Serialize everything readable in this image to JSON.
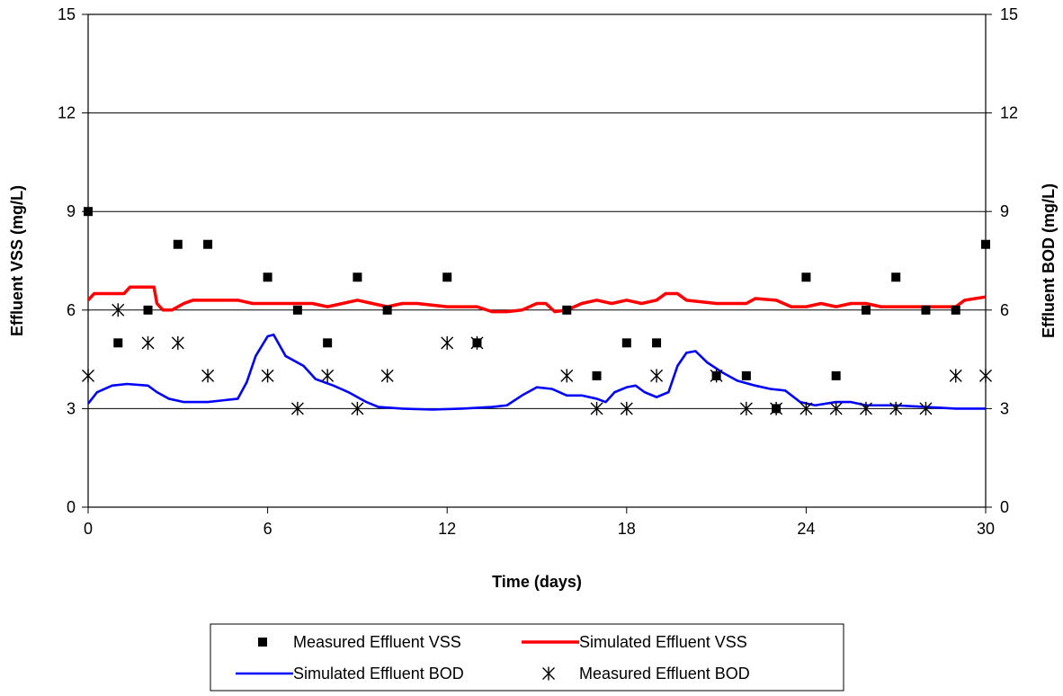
{
  "chart_data": {
    "type": "line",
    "title": "",
    "xlabel": "Time (days)",
    "ylabel": "Effluent VSS (mg/L)",
    "y2label": "Effluent BOD (mg/L)",
    "xlim": [
      0,
      30
    ],
    "ylim": [
      0,
      15
    ],
    "y2lim": [
      0,
      15
    ],
    "xticks": [
      "0",
      "6",
      "12",
      "18",
      "24",
      "30"
    ],
    "yticks": [
      "0",
      "3",
      "6",
      "9",
      "12",
      "15"
    ],
    "y2ticks": [
      "0",
      "3",
      "6",
      "9",
      "12",
      "15"
    ],
    "grid": "horizontal",
    "legend_position": "bottom",
    "series": [
      {
        "name": "Measured Effluent VSS",
        "kind": "marker-square",
        "color": "#000000",
        "x": [
          0,
          1,
          2,
          3,
          4,
          6,
          7,
          8,
          9,
          10,
          12,
          13,
          16,
          17,
          18,
          19,
          21,
          22,
          23,
          24,
          25,
          26,
          27,
          28,
          29,
          30
        ],
        "y": [
          9,
          5,
          6,
          8,
          8,
          7,
          6,
          5,
          7,
          6,
          7,
          5,
          6,
          4,
          5,
          5,
          4,
          4,
          3,
          7,
          4,
          6,
          7,
          6,
          6,
          8
        ]
      },
      {
        "name": "Simulated Effluent VSS",
        "kind": "line",
        "color": "#ff0000",
        "x": [
          0,
          0.2,
          1.2,
          1.4,
          2.2,
          2.3,
          2.5,
          2.8,
          3.2,
          3.5,
          4,
          5,
          5.5,
          6,
          7,
          7.5,
          8,
          8.5,
          9,
          9.5,
          10,
          10.5,
          11,
          12,
          12.5,
          13,
          13.5,
          14,
          14.5,
          15,
          15.3,
          15.6,
          16,
          16.5,
          17,
          17.5,
          18,
          18.5,
          19,
          19.3,
          19.7,
          20,
          21,
          22,
          22.3,
          23,
          23.5,
          24,
          24.5,
          25,
          25.5,
          26,
          26.5,
          27,
          28,
          29,
          29.3,
          30
        ],
        "y": [
          6.3,
          6.5,
          6.5,
          6.7,
          6.7,
          6.2,
          6.0,
          6.0,
          6.2,
          6.3,
          6.3,
          6.3,
          6.2,
          6.2,
          6.2,
          6.2,
          6.1,
          6.2,
          6.3,
          6.2,
          6.1,
          6.2,
          6.2,
          6.1,
          6.1,
          6.1,
          5.95,
          5.95,
          6.0,
          6.2,
          6.2,
          5.95,
          6.0,
          6.2,
          6.3,
          6.2,
          6.3,
          6.2,
          6.3,
          6.5,
          6.5,
          6.3,
          6.2,
          6.2,
          6.35,
          6.3,
          6.1,
          6.1,
          6.2,
          6.1,
          6.2,
          6.2,
          6.1,
          6.1,
          6.1,
          6.1,
          6.3,
          6.4
        ]
      },
      {
        "name": "Simulated Effluent BOD",
        "kind": "line",
        "color": "#0000ff",
        "x": [
          0,
          0.3,
          0.8,
          1.3,
          2,
          2.3,
          2.7,
          3.2,
          4,
          4.5,
          5.0,
          5.3,
          5.6,
          6.0,
          6.2,
          6.6,
          7.2,
          7.6,
          8.2,
          8.7,
          9.3,
          9.7,
          10.5,
          11.5,
          12.5,
          13.5,
          14.0,
          14.5,
          15.0,
          15.5,
          16.0,
          16.5,
          17.0,
          17.3,
          17.6,
          18.0,
          18.3,
          18.6,
          19.0,
          19.4,
          19.7,
          20.0,
          20.3,
          20.7,
          21.2,
          21.7,
          22.3,
          22.8,
          23.3,
          23.8,
          24.3,
          25.0,
          25.5,
          26.0,
          27.0,
          28.0,
          29.0,
          29.4,
          30.0
        ],
        "y": [
          3.15,
          3.5,
          3.7,
          3.75,
          3.7,
          3.5,
          3.3,
          3.2,
          3.2,
          3.25,
          3.3,
          3.8,
          4.6,
          5.2,
          5.25,
          4.6,
          4.3,
          3.9,
          3.7,
          3.5,
          3.2,
          3.05,
          3.0,
          2.97,
          3.0,
          3.05,
          3.1,
          3.4,
          3.65,
          3.6,
          3.4,
          3.4,
          3.3,
          3.2,
          3.5,
          3.65,
          3.7,
          3.5,
          3.35,
          3.5,
          4.3,
          4.7,
          4.75,
          4.4,
          4.1,
          3.85,
          3.7,
          3.6,
          3.55,
          3.2,
          3.1,
          3.2,
          3.2,
          3.1,
          3.1,
          3.05,
          3.0,
          3.0,
          3.0
        ]
      },
      {
        "name": "Measured Effluent BOD",
        "kind": "marker-asterisk",
        "color": "#000000",
        "x": [
          0,
          1,
          2,
          3,
          4,
          6,
          7,
          8,
          9,
          10,
          12,
          13,
          16,
          17,
          18,
          19,
          21,
          22,
          23,
          24,
          25,
          26,
          27,
          28,
          29,
          30
        ],
        "y": [
          4,
          6,
          5,
          5,
          4,
          4,
          3,
          4,
          3,
          4,
          5,
          5,
          4,
          3,
          3,
          4,
          4,
          3,
          3,
          3,
          3,
          3,
          3,
          3,
          4,
          4
        ]
      }
    ]
  }
}
